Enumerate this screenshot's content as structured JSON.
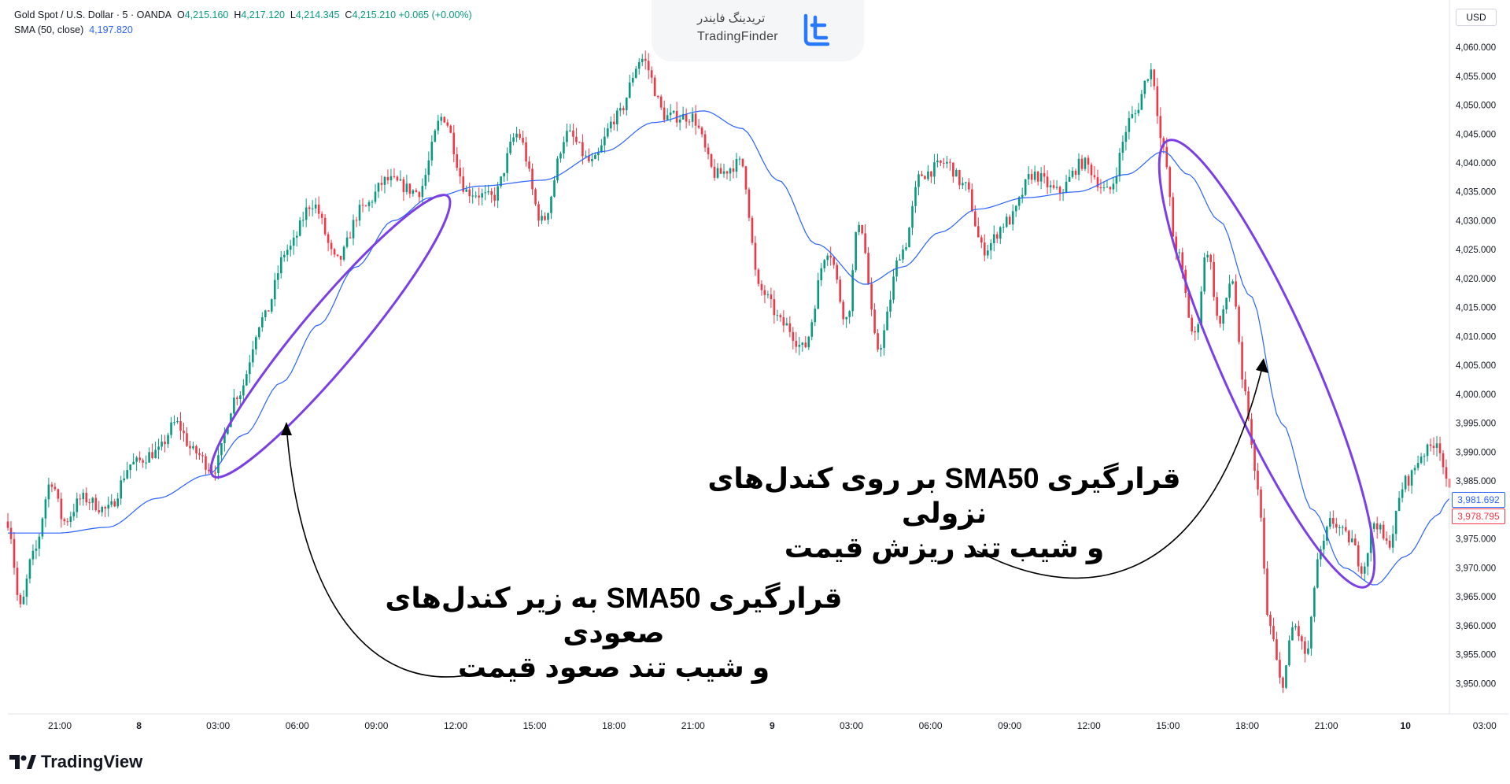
{
  "legend": {
    "symbol": "Gold Spot / U.S. Dollar · 5 · OANDA",
    "open_label": "O",
    "open": "4,215.160",
    "high_label": "H",
    "high": "4,217.120",
    "low_label": "L",
    "low": "4,214.345",
    "close_label": "C",
    "close": "4,215.210",
    "change": "+0.065 (+0.00%)",
    "sma_label": "SMA (50, close)",
    "sma_value": "4,197.820"
  },
  "currency_button": "USD",
  "watermark": {
    "persian": "تریدینگ فایندر",
    "english": "TradingFinder"
  },
  "branding": {
    "name": "TradingView"
  },
  "annotations": {
    "bearish_line1": "قرارگیری SMA50 بر روی کندل‌های نزولی",
    "bearish_line2": "و شیب تند ریزش قیمت",
    "bullish_line1": "قرارگیری SMA50 به زیر کندل‌های صعودی",
    "bullish_line2": "و شیب تند صعود قیمت"
  },
  "price_badges": {
    "sma": "3,981.692",
    "last": "3,978.795"
  },
  "colors": {
    "up": "#089981",
    "down": "#f23645",
    "sma": "#2962ff",
    "ellipse": "#7b3fe4"
  },
  "chart_data": {
    "type": "candlestick",
    "series_name": "Gold Spot / U.S. Dollar",
    "indicator": "SMA (50, close)",
    "ylim": [
      3945,
      4063
    ],
    "yticks": [
      4060,
      4055,
      4050,
      4045,
      4040,
      4035,
      4030,
      4025,
      4020,
      4015,
      4010,
      4005,
      4000,
      3995,
      3990,
      3985,
      3980,
      3975,
      3970,
      3965,
      3960,
      3955,
      3950
    ],
    "ytick_labels": [
      "4,060.000",
      "4,055.000",
      "4,050.000",
      "4,045.000",
      "4,040.000",
      "4,035.000",
      "4,030.000",
      "4,025.000",
      "4,020.000",
      "4,015.000",
      "4,010.000",
      "4,005.000",
      "4,000.000",
      "3,995.000",
      "3,990.000",
      "3,985.000",
      "",
      "3,975.000",
      "3,970.000",
      "3,965.000",
      "3,960.000",
      "3,955.000",
      "3,950.000"
    ],
    "xtick_labels": [
      "21:00",
      "8",
      "03:00",
      "06:00",
      "09:00",
      "12:00",
      "15:00",
      "18:00",
      "21:00",
      "9",
      "03:00",
      "06:00",
      "09:00",
      "12:00",
      "15:00",
      "18:00",
      "21:00",
      "10",
      "03:00"
    ],
    "price_path": [
      {
        "t": 0,
        "p": 3978
      },
      {
        "t": 2,
        "p": 3963
      },
      {
        "t": 4,
        "p": 3972
      },
      {
        "t": 7,
        "p": 3985
      },
      {
        "t": 9,
        "p": 3978
      },
      {
        "t": 12,
        "p": 3982
      },
      {
        "t": 16,
        "p": 3980
      },
      {
        "t": 20,
        "p": 3988
      },
      {
        "t": 24,
        "p": 3990
      },
      {
        "t": 27,
        "p": 3995
      },
      {
        "t": 30,
        "p": 3990
      },
      {
        "t": 33,
        "p": 3987
      },
      {
        "t": 37,
        "p": 4000
      },
      {
        "t": 41,
        "p": 4013
      },
      {
        "t": 45,
        "p": 4025
      },
      {
        "t": 49,
        "p": 4033
      },
      {
        "t": 53,
        "p": 4023
      },
      {
        "t": 57,
        "p": 4032
      },
      {
        "t": 61,
        "p": 4037
      },
      {
        "t": 66,
        "p": 4035
      },
      {
        "t": 70,
        "p": 4048
      },
      {
        "t": 74,
        "p": 4035
      },
      {
        "t": 78,
        "p": 4034
      },
      {
        "t": 82,
        "p": 4045
      },
      {
        "t": 86,
        "p": 4030
      },
      {
        "t": 90,
        "p": 4045
      },
      {
        "t": 94,
        "p": 4040
      },
      {
        "t": 98,
        "p": 4048
      },
      {
        "t": 102,
        "p": 4058
      },
      {
        "t": 106,
        "p": 4048
      },
      {
        "t": 110,
        "p": 4048
      },
      {
        "t": 114,
        "p": 4038
      },
      {
        "t": 118,
        "p": 4040
      },
      {
        "t": 121,
        "p": 4018
      },
      {
        "t": 125,
        "p": 4012
      },
      {
        "t": 128,
        "p": 4008
      },
      {
        "t": 132,
        "p": 4025
      },
      {
        "t": 135,
        "p": 4013
      },
      {
        "t": 137,
        "p": 4030
      },
      {
        "t": 140,
        "p": 4008
      },
      {
        "t": 144,
        "p": 4025
      },
      {
        "t": 147,
        "p": 4038
      },
      {
        "t": 151,
        "p": 4040
      },
      {
        "t": 154,
        "p": 4036
      },
      {
        "t": 157,
        "p": 4025
      },
      {
        "t": 161,
        "p": 4030
      },
      {
        "t": 165,
        "p": 4038
      },
      {
        "t": 169,
        "p": 4035
      },
      {
        "t": 173,
        "p": 4040
      },
      {
        "t": 177,
        "p": 4035
      },
      {
        "t": 181,
        "p": 4048
      },
      {
        "t": 184,
        "p": 4056
      },
      {
        "t": 186,
        "p": 4042
      },
      {
        "t": 188,
        "p": 4025
      },
      {
        "t": 191,
        "p": 4010
      },
      {
        "t": 193,
        "p": 4025
      },
      {
        "t": 195,
        "p": 4012
      },
      {
        "t": 197,
        "p": 4020
      },
      {
        "t": 199,
        "p": 4000
      },
      {
        "t": 201,
        "p": 3985
      },
      {
        "t": 203,
        "p": 3960
      },
      {
        "t": 205,
        "p": 3950
      },
      {
        "t": 207,
        "p": 3960
      },
      {
        "t": 209,
        "p": 3955
      },
      {
        "t": 211,
        "p": 3972
      },
      {
        "t": 213,
        "p": 3978
      },
      {
        "t": 216,
        "p": 3975
      },
      {
        "t": 218,
        "p": 3970
      },
      {
        "t": 220,
        "p": 3978
      },
      {
        "t": 222,
        "p": 3974
      },
      {
        "t": 225,
        "p": 3985
      },
      {
        "t": 228,
        "p": 3990
      },
      {
        "t": 230,
        "p": 3992
      },
      {
        "t": 232,
        "p": 3983
      }
    ],
    "sma_path": [
      {
        "t": 0,
        "p": 3976
      },
      {
        "t": 8,
        "p": 3976
      },
      {
        "t": 16,
        "p": 3977
      },
      {
        "t": 24,
        "p": 3982
      },
      {
        "t": 32,
        "p": 3986
      },
      {
        "t": 38,
        "p": 3993
      },
      {
        "t": 44,
        "p": 4002
      },
      {
        "t": 50,
        "p": 4012
      },
      {
        "t": 56,
        "p": 4022
      },
      {
        "t": 62,
        "p": 4030
      },
      {
        "t": 68,
        "p": 4034
      },
      {
        "t": 76,
        "p": 4036
      },
      {
        "t": 86,
        "p": 4037
      },
      {
        "t": 96,
        "p": 4042
      },
      {
        "t": 104,
        "p": 4047
      },
      {
        "t": 112,
        "p": 4049
      },
      {
        "t": 118,
        "p": 4046
      },
      {
        "t": 124,
        "p": 4037
      },
      {
        "t": 130,
        "p": 4026
      },
      {
        "t": 138,
        "p": 4019
      },
      {
        "t": 144,
        "p": 4022
      },
      {
        "t": 150,
        "p": 4028
      },
      {
        "t": 156,
        "p": 4032
      },
      {
        "t": 164,
        "p": 4034
      },
      {
        "t": 172,
        "p": 4035
      },
      {
        "t": 180,
        "p": 4038
      },
      {
        "t": 186,
        "p": 4042
      },
      {
        "t": 190,
        "p": 4038
      },
      {
        "t": 195,
        "p": 4030
      },
      {
        "t": 200,
        "p": 4017
      },
      {
        "t": 205,
        "p": 3995
      },
      {
        "t": 210,
        "p": 3980
      },
      {
        "t": 215,
        "p": 3970
      },
      {
        "t": 220,
        "p": 3967
      },
      {
        "t": 225,
        "p": 3972
      },
      {
        "t": 230,
        "p": 3979
      },
      {
        "t": 232,
        "p": 3982
      }
    ]
  }
}
